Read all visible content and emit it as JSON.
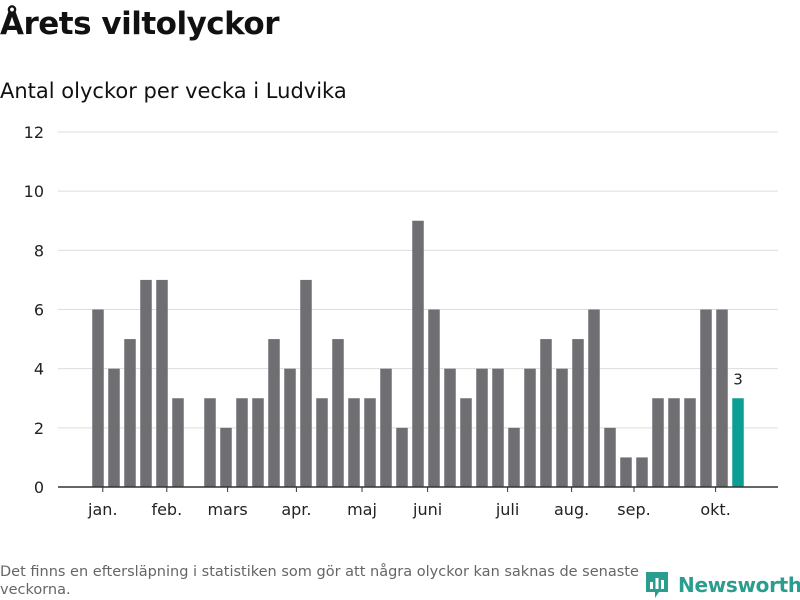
{
  "header": {
    "title": "Årets viltolyckor",
    "subtitle": "Antal olyckor per vecka i Ludvika"
  },
  "footer": {
    "note": "Det finns en eftersläpning i statistiken som gör att några olyckor kan saknas de senaste veckorna.",
    "brand": "Newsworthy",
    "brand_icon": "newsworthy-logo-icon"
  },
  "colors": {
    "bar": "#6e6e73",
    "highlight": "#0b9e94",
    "grid": "#dddddd",
    "axis": "#333333",
    "brand": "#2a9d8f"
  },
  "chart_data": {
    "type": "bar",
    "ylim": [
      0,
      12
    ],
    "yticks": [
      0,
      2,
      4,
      6,
      8,
      10,
      12
    ],
    "grid": true,
    "weeks": [
      1,
      2,
      3,
      4,
      5,
      6,
      7,
      8,
      9,
      10,
      11,
      12,
      13,
      14,
      15,
      16,
      17,
      18,
      19,
      20,
      21,
      22,
      23,
      24,
      25,
      26,
      27,
      28,
      29,
      30,
      31,
      32,
      33,
      34,
      35,
      36,
      37,
      38,
      39,
      40,
      41
    ],
    "values": [
      6,
      4,
      5,
      7,
      7,
      3,
      0,
      3,
      2,
      3,
      3,
      5,
      4,
      7,
      3,
      5,
      3,
      3,
      4,
      2,
      9,
      6,
      4,
      3,
      4,
      4,
      2,
      4,
      5,
      4,
      5,
      6,
      2,
      1,
      1,
      3,
      3,
      3,
      6,
      6,
      3
    ],
    "highlight_index": 40,
    "highlight_label": "3",
    "month_labels": [
      {
        "label": "jan.",
        "week": 1.3
      },
      {
        "label": "feb.",
        "week": 5.3
      },
      {
        "label": "mars",
        "week": 9.1
      },
      {
        "label": "apr.",
        "week": 13.4
      },
      {
        "label": "maj",
        "week": 17.5
      },
      {
        "label": "juni",
        "week": 21.6
      },
      {
        "label": "juli",
        "week": 26.6
      },
      {
        "label": "aug.",
        "week": 30.6
      },
      {
        "label": "sep.",
        "week": 34.5
      },
      {
        "label": "okt.",
        "week": 39.6
      }
    ]
  }
}
